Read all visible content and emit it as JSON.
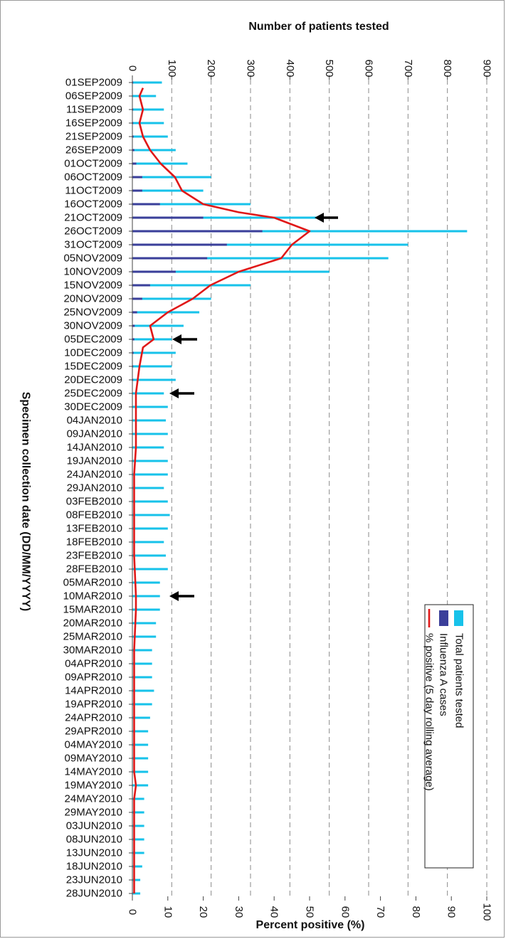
{
  "colors": {
    "total": "#17c2ea",
    "influenza": "#3b3f9a",
    "rolling": "#e01818",
    "grid": "#8a8a8a",
    "arrow": "#000000"
  },
  "chart_data": {
    "type": "bar",
    "orientation": "horizontal-bars-on-date-axis",
    "xlabel": "Specimen collection date (DD/MM/YYYY)",
    "top_axis_label": "Number of patients tested",
    "bottom_axis_label": "Percent positive (%)",
    "top_axis": {
      "range": [
        0,
        900
      ],
      "ticks": [
        "0",
        "100",
        "200",
        "300",
        "400",
        "500",
        "600",
        "700",
        "800",
        "900"
      ]
    },
    "bottom_axis": {
      "range": [
        0,
        100
      ],
      "ticks": [
        "0",
        "10",
        "20",
        "30",
        "40",
        "50",
        "60",
        "70",
        "80",
        "90",
        "100"
      ]
    },
    "grid": "dashed at each top-axis tick",
    "legend_position": "inside, lower right",
    "legend": [
      "Total patients tested",
      "Influenza A cases",
      "% positive (5 day rolling average)"
    ],
    "date_labels": [
      "01SEP2009",
      "06SEP2009",
      "11SEP2009",
      "16SEP2009",
      "21SEP2009",
      "26SEP2009",
      "01OCT2009",
      "06OCT2009",
      "11OCT2009",
      "16OCT2009",
      "21OCT2009",
      "26OCT2009",
      "31OCT2009",
      "05NOV2009",
      "10NOV2009",
      "15NOV2009",
      "20NOV2009",
      "25NOV2009",
      "30NOV2009",
      "05DEC2009",
      "10DEC2009",
      "15DEC2009",
      "20DEC2009",
      "25DEC2009",
      "30DEC2009",
      "04JAN2010",
      "09JAN2010",
      "14JAN2010",
      "19JAN2010",
      "24JAN2010",
      "29JAN2010",
      "03FEB2010",
      "08FEB2010",
      "13FEB2010",
      "18FEB2010",
      "23FEB2010",
      "28FEB2010",
      "05MAR2010",
      "10MAR2010",
      "15MAR2010",
      "20MAR2010",
      "25MAR2010",
      "30MAR2010",
      "04APR2010",
      "09APR2010",
      "14APR2010",
      "19APR2010",
      "24APR2010",
      "29APR2010",
      "04MAY2010",
      "09MAY2010",
      "14MAY2010",
      "19MAY2010",
      "24MAY2010",
      "29MAY2010",
      "03JUN2010",
      "08JUN2010",
      "13JUN2010",
      "18JUN2010",
      "23JUN2010",
      "28JUN2010"
    ],
    "series": [
      {
        "name": "Total patients tested",
        "axis": "top",
        "sample_dates": [
          "01SEP2009",
          "06SEP2009",
          "11SEP2009",
          "16SEP2009",
          "21SEP2009",
          "26SEP2009",
          "01OCT2009",
          "06OCT2009",
          "11OCT2009",
          "16OCT2009",
          "21OCT2009",
          "26OCT2009",
          "31OCT2009",
          "05NOV2009",
          "10NOV2009",
          "15NOV2009",
          "20NOV2009",
          "25NOV2009",
          "30NOV2009",
          "05DEC2009",
          "10DEC2009",
          "15DEC2009",
          "20DEC2009",
          "25DEC2009",
          "30DEC2009",
          "04JAN2010",
          "09JAN2010",
          "14JAN2010",
          "19JAN2010",
          "24JAN2010",
          "29JAN2010",
          "03FEB2010",
          "08FEB2010",
          "13FEB2010",
          "18FEB2010",
          "23FEB2010",
          "28FEB2010",
          "05MAR2010",
          "10MAR2010",
          "15MAR2010",
          "20MAR2010",
          "25MAR2010",
          "30MAR2010",
          "04APR2010",
          "09APR2010",
          "14APR2010",
          "19APR2010",
          "24APR2010",
          "29APR2010",
          "04MAY2010",
          "09MAY2010",
          "14MAY2010",
          "19MAY2010",
          "24MAY2010",
          "29MAY2010",
          "03JUN2010",
          "08JUN2010",
          "13JUN2010",
          "18JUN2010",
          "23JUN2010",
          "28JUN2010"
        ],
        "values": [
          75,
          60,
          80,
          80,
          90,
          110,
          140,
          200,
          180,
          300,
          480,
          850,
          700,
          650,
          500,
          300,
          200,
          170,
          130,
          100,
          110,
          100,
          110,
          80,
          90,
          85,
          90,
          80,
          90,
          90,
          80,
          90,
          95,
          90,
          80,
          85,
          90,
          70,
          70,
          70,
          60,
          60,
          50,
          50,
          50,
          55,
          50,
          45,
          40,
          40,
          40,
          40,
          40,
          30,
          30,
          30,
          30,
          30,
          25,
          20,
          20
        ]
      },
      {
        "name": "Influenza A cases",
        "axis": "top",
        "sample_dates": [
          "01SEP2009",
          "06SEP2009",
          "11SEP2009",
          "16SEP2009",
          "21SEP2009",
          "26SEP2009",
          "01OCT2009",
          "06OCT2009",
          "11OCT2009",
          "16OCT2009",
          "21OCT2009",
          "26OCT2009",
          "31OCT2009",
          "05NOV2009",
          "10NOV2009",
          "15NOV2009",
          "20NOV2009",
          "25NOV2009",
          "30NOV2009",
          "05DEC2009",
          "10DEC2009",
          "15DEC2009",
          "20DEC2009",
          "25DEC2009",
          "30DEC2009",
          "04JAN2010",
          "09JAN2010",
          "14JAN2010",
          "19JAN2010",
          "24JAN2010",
          "29JAN2010",
          "03FEB2010",
          "08FEB2010",
          "13FEB2010",
          "18FEB2010",
          "23FEB2010",
          "28FEB2010",
          "05MAR2010",
          "10MAR2010",
          "15MAR2010",
          "20MAR2010",
          "25MAR2010",
          "30MAR2010",
          "04APR2010",
          "09APR2010",
          "14APR2010",
          "19APR2010",
          "24APR2010",
          "29APR2010",
          "04MAY2010",
          "09MAY2010",
          "14MAY2010",
          "19MAY2010",
          "24MAY2010",
          "29MAY2010",
          "03JUN2010",
          "08JUN2010",
          "13JUN2010",
          "18JUN2010",
          "23JUN2010",
          "28JUN2010"
        ],
        "values": [
          2,
          1,
          2,
          2,
          3,
          5,
          10,
          25,
          25,
          70,
          180,
          330,
          240,
          190,
          110,
          45,
          25,
          12,
          6,
          5,
          3,
          2,
          2,
          1,
          1,
          1,
          1,
          1,
          1,
          0,
          0,
          0,
          0,
          0,
          0,
          1,
          0,
          0,
          0,
          1,
          0,
          0,
          0,
          0,
          0,
          0,
          0,
          0,
          0,
          0,
          0,
          0,
          0,
          0,
          0,
          0,
          0,
          0,
          0,
          0,
          0
        ]
      },
      {
        "name": "% positive (5 day rolling average)",
        "axis": "bottom",
        "sample_dates": [
          "03SEP2009",
          "06SEP2009",
          "11SEP2009",
          "16SEP2009",
          "21SEP2009",
          "26SEP2009",
          "01OCT2009",
          "06OCT2009",
          "11OCT2009",
          "16OCT2009",
          "19OCT2009",
          "21OCT2009",
          "26OCT2009",
          "28OCT2009",
          "31OCT2009",
          "05NOV2009",
          "10NOV2009",
          "15NOV2009",
          "20NOV2009",
          "25NOV2009",
          "30NOV2009",
          "05DEC2009",
          "08DEC2009",
          "15DEC2009",
          "25DEC2009",
          "04JAN2010",
          "14JAN2010",
          "24JAN2010",
          "08FEB2010",
          "23FEB2010",
          "10MAR2010",
          "15MAR2010",
          "30MAR2010",
          "14APR2010",
          "29APR2010",
          "14MAY2010",
          "19MAY2010",
          "24MAY2010",
          "13JUN2010",
          "28JUN2010"
        ],
        "values": [
          3,
          2,
          3,
          2,
          3,
          5,
          8,
          12,
          14,
          20,
          30,
          40,
          50,
          48,
          45,
          42,
          30,
          22,
          17,
          10,
          5,
          6,
          3,
          2,
          1,
          1,
          1,
          0.5,
          0.5,
          0.5,
          1,
          1,
          0.5,
          0.5,
          0.5,
          0.5,
          1,
          0.5,
          0.5,
          0.5
        ]
      }
    ],
    "annotations": [
      {
        "type": "arrow",
        "date": "21OCT2009",
        "note": ""
      },
      {
        "type": "arrow",
        "date": "05DEC2009",
        "note": ""
      },
      {
        "type": "arrow",
        "date": "25DEC2009",
        "note": ""
      },
      {
        "type": "arrow",
        "date": "10MAR2010",
        "note": ""
      }
    ]
  }
}
